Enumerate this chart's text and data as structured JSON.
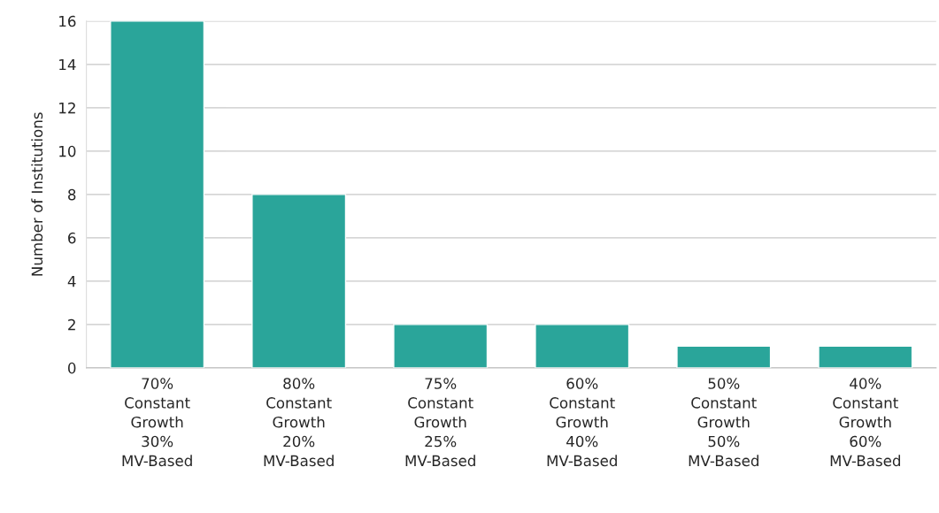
{
  "chart_data": {
    "type": "bar",
    "ylabel": "Number of Institutions",
    "categories": [
      "70%\nConstant\nGrowth\n30%\nMV-Based",
      "80%\nConstant\nGrowth\n20%\nMV-Based",
      "75%\nConstant\nGrowth\n25%\nMV-Based",
      "60%\nConstant\nGrowth\n40%\nMV-Based",
      "50%\nConstant\nGrowth\n50%\nMV-Based",
      "40%\nConstant\nGrowth\n60%\nMV-Based"
    ],
    "values": [
      16,
      8,
      2,
      2,
      1,
      1
    ],
    "color": "#2aa59a",
    "ylim": [
      0,
      16
    ],
    "yticks": [
      0,
      2,
      4,
      6,
      8,
      10,
      12,
      14,
      16
    ],
    "grid": "y"
  }
}
